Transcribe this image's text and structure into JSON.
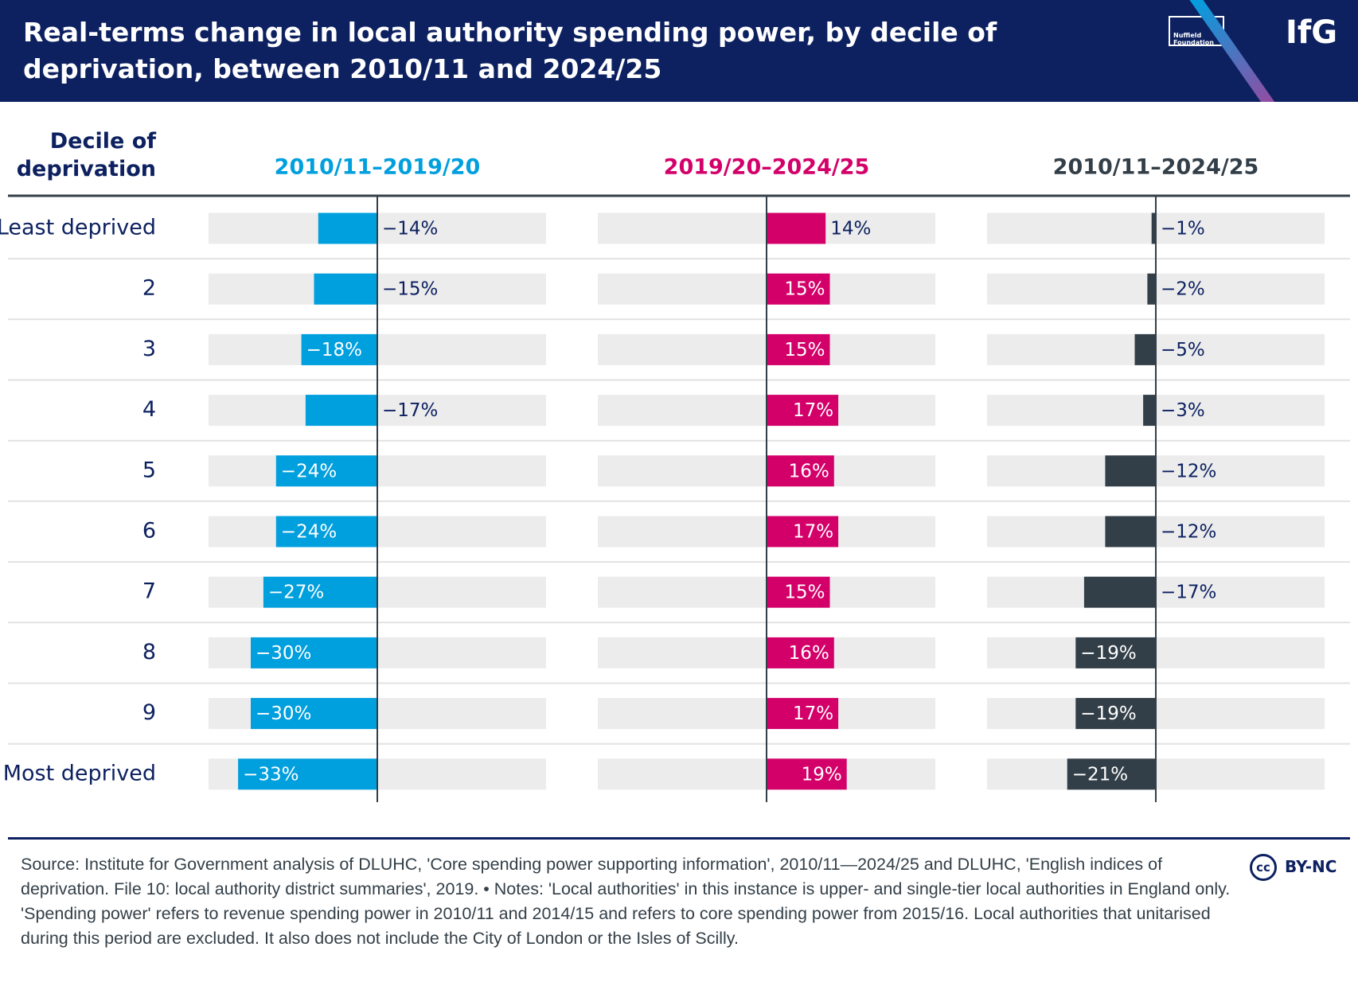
{
  "header": {
    "logo_text": "Nuffield Foundation",
    "brand": "IfG"
  },
  "chart_data": {
    "type": "bar",
    "orientation": "horizontal",
    "title": "Real-terms change in local authority spending power, by decile of deprivation, between 2010/11 and 2024/25",
    "category_label": "Decile of deprivation",
    "categories": [
      "Least deprived",
      "2",
      "3",
      "4",
      "5",
      "6",
      "7",
      "8",
      "9",
      "Most deprived"
    ],
    "xlim": [
      -40,
      40
    ],
    "series": [
      {
        "name": "2010/11–2019/20",
        "color": "#009fdd",
        "values": [
          -14,
          -15,
          -18,
          -17,
          -24,
          -24,
          -27,
          -30,
          -30,
          -33
        ],
        "value_labels": [
          "−14%",
          "−15%",
          "−18%",
          "−17%",
          "−24%",
          "−24%",
          "−27%",
          "−30%",
          "−30%",
          "−33%"
        ]
      },
      {
        "name": "2019/20–2024/25",
        "color": "#d4006a",
        "values": [
          14,
          15,
          15,
          17,
          16,
          17,
          15,
          16,
          17,
          19
        ],
        "value_labels": [
          "14%",
          "15%",
          "15%",
          "17%",
          "16%",
          "17%",
          "15%",
          "16%",
          "17%",
          "19%"
        ]
      },
      {
        "name": "2010/11–2024/25",
        "color": "#333f48",
        "values": [
          -1,
          -2,
          -5,
          -3,
          -12,
          -12,
          -17,
          -19,
          -19,
          -21
        ],
        "value_labels": [
          "−1%",
          "−2%",
          "−5%",
          "−3%",
          "−12%",
          "−12%",
          "−17%",
          "−19%",
          "−19%",
          "−21%"
        ]
      }
    ]
  },
  "footer": {
    "source": "Source: Institute for Government analysis of DLUHC, 'Core spending power supporting information', 2010/11—2024/25 and DLUHC, 'English indices of deprivation. File 10: local authority district summaries', 2019. • Notes: 'Local authorities' in this instance is upper- and single-tier local authorities in England only. 'Spending power' refers to revenue spending power in 2010/11 and 2014/15 and refers to core spending power from 2015/16. Local authorities that unitarised during this period are excluded. It also does not include the City of London or the Isles of Scilly.",
    "license_icon": "cc",
    "license": "BY-NC"
  }
}
